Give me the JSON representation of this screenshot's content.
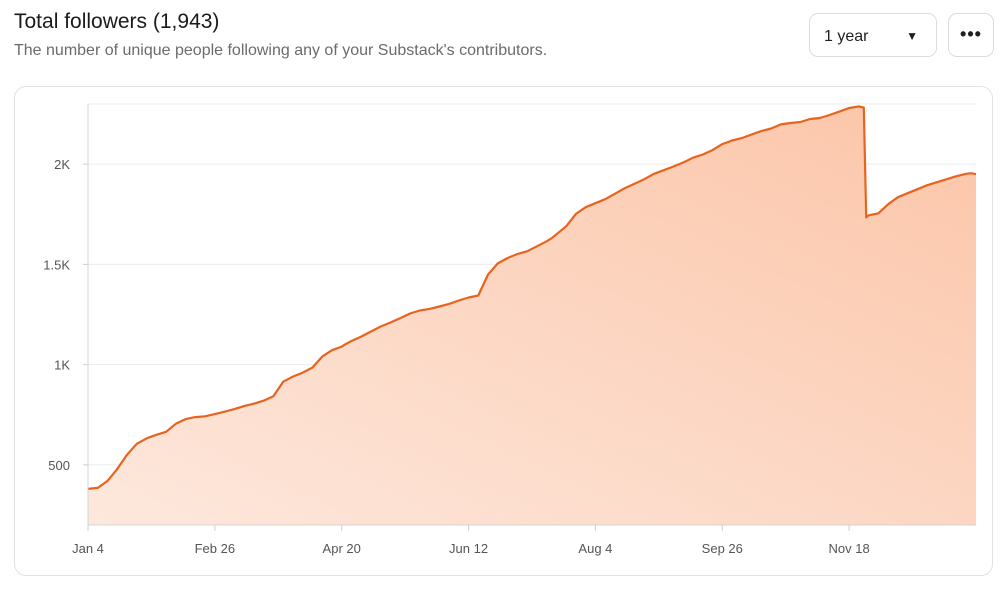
{
  "header": {
    "title": "Total followers (1,943)",
    "subtitle": "The number of unique people following any of your Substack's contributors."
  },
  "controls": {
    "range_value": "1 year",
    "more_label": "•••"
  },
  "colors": {
    "line": "#e8631e",
    "area_top": "#fcc5a8",
    "area_bottom": "#fde8dd"
  },
  "chart_data": {
    "type": "area",
    "title": "",
    "xlabel": "",
    "ylabel": "",
    "x_ticks": [
      "Jan 4",
      "Feb 26",
      "Apr 20",
      "Jun 12",
      "Aug 4",
      "Sep 26",
      "Nov 18"
    ],
    "y_ticks": [
      {
        "value": 500,
        "label": "500"
      },
      {
        "value": 1000,
        "label": "1K"
      },
      {
        "value": 1500,
        "label": "1.5K"
      },
      {
        "value": 2000,
        "label": "2K"
      }
    ],
    "ylim": [
      200,
      2300
    ],
    "grid": "horizontal",
    "legend": "none",
    "series": [
      {
        "name": "",
        "x_days": [
          0,
          4,
          8,
          12,
          16,
          20,
          24,
          28,
          32,
          36,
          40,
          44,
          48,
          52,
          56,
          60,
          64,
          68,
          72,
          76,
          80,
          84,
          88,
          92,
          96,
          100,
          104,
          106,
          108,
          112,
          116,
          120,
          124,
          128,
          132,
          136,
          140,
          144,
          148,
          152,
          156,
          160,
          164,
          168,
          172,
          176,
          180,
          184,
          188,
          190,
          191,
          192,
          196,
          200,
          204,
          208,
          212,
          216,
          220,
          224,
          228,
          232,
          236,
          240,
          244,
          248,
          252,
          256,
          260,
          264,
          268,
          272,
          276,
          280,
          284,
          288,
          292,
          296,
          300,
          304,
          308,
          312,
          316,
          318,
          319,
          320,
          324,
          328,
          332,
          336,
          340,
          344,
          348,
          352,
          356,
          360,
          362,
          364
        ],
        "values": [
          380,
          385,
          420,
          480,
          550,
          605,
          632,
          650,
          665,
          705,
          728,
          738,
          742,
          753,
          765,
          778,
          793,
          805,
          820,
          842,
          915,
          940,
          960,
          985,
          1040,
          1072,
          1090,
          1105,
          1118,
          1140,
          1165,
          1190,
          1210,
          1232,
          1255,
          1270,
          1278,
          1290,
          1303,
          1320,
          1335,
          1345,
          1450,
          1505,
          1532,
          1552,
          1565,
          1590,
          1615,
          1630,
          1640,
          1650,
          1690,
          1752,
          1785,
          1805,
          1825,
          1852,
          1880,
          1902,
          1925,
          1952,
          1970,
          1988,
          2008,
          2032,
          2048,
          2070,
          2100,
          2118,
          2130,
          2148,
          2165,
          2178,
          2198,
          2205,
          2210,
          2225,
          2230,
          2245,
          2262,
          2280,
          2288,
          2282,
          1735,
          1745,
          1755,
          1800,
          1835,
          1855,
          1875,
          1895,
          1910,
          1925,
          1940,
          1952,
          1955,
          1950
        ]
      }
    ]
  }
}
